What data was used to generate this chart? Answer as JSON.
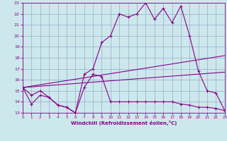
{
  "xlabel": "Windchill (Refroidissement éolien,°C)",
  "background_color": "#cce8ec",
  "line_color": "#880088",
  "grid_color": "#99aacc",
  "xlim": [
    0,
    23
  ],
  "ylim": [
    13,
    23
  ],
  "xticks": [
    0,
    1,
    2,
    3,
    4,
    5,
    6,
    7,
    8,
    9,
    10,
    11,
    12,
    13,
    14,
    15,
    16,
    17,
    18,
    19,
    20,
    21,
    22,
    23
  ],
  "yticks": [
    13,
    14,
    15,
    16,
    17,
    18,
    19,
    20,
    21,
    22,
    23
  ],
  "line1_x": [
    0,
    1,
    2,
    3,
    4,
    5,
    6,
    7,
    8,
    9,
    10,
    11,
    12,
    13,
    14,
    15,
    16,
    17,
    18,
    19,
    20,
    21,
    22,
    23
  ],
  "line1_y": [
    15.3,
    13.8,
    14.6,
    14.4,
    13.7,
    13.5,
    13.0,
    16.5,
    17.0,
    19.4,
    20.0,
    22.0,
    21.7,
    22.0,
    23.0,
    21.5,
    22.5,
    21.2,
    22.7,
    20.0,
    16.8,
    15.0,
    14.8,
    13.2
  ],
  "line2_x": [
    0,
    1,
    2,
    3,
    4,
    5,
    6,
    7,
    8,
    9,
    10,
    11,
    12,
    13,
    14,
    15,
    16,
    17,
    18,
    19,
    20,
    21,
    22,
    23
  ],
  "line2_y": [
    15.3,
    14.6,
    15.0,
    14.4,
    13.7,
    13.5,
    13.0,
    15.3,
    16.5,
    16.3,
    14.0,
    14.0,
    14.0,
    14.0,
    14.0,
    14.0,
    14.0,
    14.0,
    13.8,
    13.7,
    13.5,
    13.5,
    13.4,
    13.2
  ],
  "line3_x": [
    0,
    23
  ],
  "line3_y": [
    15.3,
    18.2
  ],
  "line4_x": [
    0,
    23
  ],
  "line4_y": [
    15.3,
    16.7
  ],
  "marker": "+"
}
